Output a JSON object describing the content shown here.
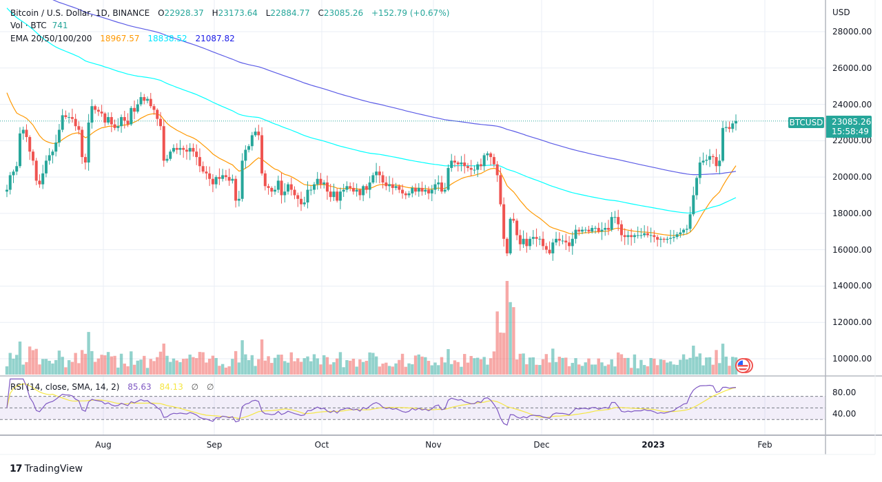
{
  "header": {
    "title": "Bitcoin / U.S. Dollar, 1D, BINANCE",
    "ohlc": {
      "o_label": "O",
      "o": "22928.37",
      "h_label": "H",
      "h": "23173.64",
      "l_label": "L",
      "l": "22884.77",
      "c_label": "C",
      "c": "23085.26",
      "change": "+152.79 (+0.67%)"
    },
    "volume": {
      "label": "Vol · BTC",
      "value": "741"
    },
    "ema": {
      "label": "EMA 20/50/100/200",
      "v20": "18967.57",
      "v50": "18838.52",
      "v200": "21087.82"
    }
  },
  "price_axis": {
    "currency": "USD",
    "ticks": [
      "28000.00",
      "26000.00",
      "24000.00",
      "22000.00",
      "20000.00",
      "18000.00",
      "16000.00",
      "14000.00",
      "12000.00",
      "10000.00"
    ]
  },
  "last_price": {
    "symbol": "BTCUSD",
    "price": "23085.26",
    "countdown": "15:58:49"
  },
  "rsi": {
    "label": "RSI (14, close, SMA, 14, 2)",
    "value": "85.63",
    "sma": "84.13",
    "extra1": "∅",
    "extra2": "∅",
    "ticks": [
      "80.00",
      "40.00"
    ]
  },
  "time_axis": {
    "labels": [
      "Aug",
      "Sep",
      "Oct",
      "Nov",
      "Dec",
      "2023",
      "Feb"
    ]
  },
  "branding": {
    "logo_mark": "17",
    "name": "TradingView"
  },
  "colors": {
    "up": "#26a69a",
    "down": "#ef5350",
    "ema20": "#ff9800",
    "ema50": "#00ffff",
    "ema200": "#5b5be6",
    "rsi": "#7e57c2",
    "rsi_sma": "#f5e642",
    "grid": "#e9eef5"
  },
  "chart_data": {
    "type": "candlestick",
    "title": "Bitcoin / U.S. Dollar, 1D, BINANCE",
    "ylabel": "USD",
    "ylim": [
      9000,
      29000
    ],
    "x_labels": [
      "Aug",
      "Sep",
      "Oct",
      "Nov",
      "Dec",
      "2023",
      "Feb"
    ],
    "close": [
      19300,
      20100,
      20300,
      20600,
      22400,
      22600,
      22200,
      21400,
      20900,
      19800,
      19600,
      20200,
      20900,
      21200,
      21400,
      21900,
      22600,
      23400,
      23300,
      23300,
      23200,
      22800,
      22600,
      21100,
      20800,
      23000,
      23900,
      23700,
      23600,
      23500,
      23000,
      23300,
      22900,
      22700,
      22800,
      23300,
      23100,
      22900,
      23800,
      23600,
      24000,
      24400,
      24200,
      24300,
      23900,
      23700,
      23200,
      22800,
      20900,
      21000,
      21400,
      21600,
      21500,
      21600,
      21500,
      21400,
      21600,
      21400,
      21100,
      20600,
      20300,
      20200,
      19900,
      19600,
      20000,
      19900,
      20100,
      20000,
      19800,
      19900,
      18700,
      18800,
      20900,
      21500,
      21700,
      22300,
      22500,
      22300,
      20200,
      19500,
      19400,
      19200,
      19300,
      19800,
      19000,
      19200,
      19600,
      19300,
      19000,
      18800,
      18500,
      18600,
      19300,
      19300,
      19600,
      19900,
      19600,
      19700,
      19200,
      18900,
      19200,
      18700,
      19200,
      19300,
      19500,
      19400,
      19200,
      19300,
      19000,
      19500,
      19300,
      19700,
      20100,
      20300,
      20100,
      19700,
      19500,
      19600,
      19400,
      19500,
      19300,
      19100,
      19000,
      19100,
      19400,
      19200,
      19400,
      19200,
      19300,
      19100,
      19300,
      19600,
      19700,
      19200,
      19300,
      20500,
      20900,
      20800,
      20700,
      20800,
      20600,
      20500,
      20400,
      20400,
      20700,
      20600,
      21200,
      21300,
      21100,
      20700,
      20100,
      18500,
      16600,
      15800,
      17700,
      17600,
      16800,
      16300,
      16600,
      16200,
      16600,
      16700,
      16600,
      16600,
      16200,
      16000,
      15800,
      16400,
      16600,
      16500,
      16500,
      16400,
      16200,
      16600,
      17100,
      17000,
      17100,
      17100,
      17000,
      17200,
      17200,
      17000,
      17100,
      17200,
      17100,
      17800,
      17800,
      17400,
      16800,
      16700,
      16800,
      16700,
      16800,
      16800,
      16800,
      16900,
      16800,
      16800,
      16700,
      16550,
      16600,
      16550,
      16600,
      16650,
      16700,
      16850,
      16950,
      17100,
      17150,
      17950,
      19000,
      19950,
      20800,
      20900,
      20950,
      21150,
      21100,
      20600,
      20900,
      22700,
      22750,
      22650,
      22950,
      23085
    ],
    "volume_note": "volume bars per candle, max spike ~14000 scale around early Nov 2022",
    "ema200_range": [
      29700,
      21087.82
    ],
    "ema50_range": [
      29500,
      18838.52
    ],
    "ema20_range": [
      25200,
      18967.57
    ],
    "rsi": {
      "ylim": [
        20,
        95
      ],
      "levels": [
        70,
        50,
        30
      ],
      "last": 85.63,
      "sma_last": 84.13
    }
  }
}
